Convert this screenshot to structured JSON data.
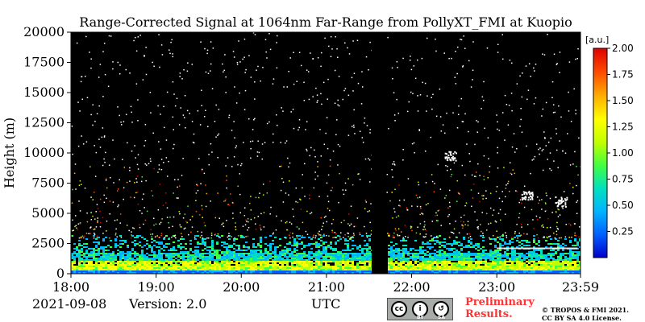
{
  "chart_data": {
    "type": "heatmap",
    "title": "Range-Corrected Signal at 1064nm Far-Range from PollyXT_FMI at Kuopio",
    "xlabel": "UTC",
    "ylabel": "Height (m)",
    "x_ticks": [
      "18:00",
      "19:00",
      "20:00",
      "21:00",
      "22:00",
      "23:00",
      "23:59"
    ],
    "x_tick_hours": [
      18,
      19,
      20,
      21,
      22,
      23,
      23.983
    ],
    "xlim_hours": [
      18,
      23.983
    ],
    "y_ticks": [
      0,
      2500,
      5000,
      7500,
      10000,
      12500,
      15000,
      17500,
      20000
    ],
    "ylim": [
      0,
      20000
    ],
    "grid": false,
    "colorbar": {
      "label": "[a.u.]",
      "ticks": [
        0.25,
        0.5,
        0.75,
        1.0,
        1.25,
        1.5,
        1.75,
        2.0
      ],
      "tick_labels": [
        "0.25",
        "0.50",
        "0.75",
        "1.00",
        "1.25",
        "1.50",
        "1.75",
        "2.00"
      ],
      "range": [
        0,
        2.0
      ],
      "colormap": [
        "#0000cc",
        "#0060ff",
        "#00b4ff",
        "#00e0c0",
        "#40ff40",
        "#c0ff00",
        "#ffff00",
        "#ffb000",
        "#ff5000",
        "#e00000"
      ]
    },
    "background_color": "#000000",
    "data_gap_hours": [
      21.53,
      21.7
    ],
    "features": [
      {
        "name": "near-ground aerosol layer",
        "height_range": [
          0,
          1500
        ],
        "typical_value": 1.0
      },
      {
        "name": "boundary-layer signal",
        "height_range": [
          1500,
          3000
        ],
        "typical_value": 0.6
      },
      {
        "name": "cloud",
        "time_hours": 23.75,
        "height": 6000,
        "typical_value": 2.0
      },
      {
        "name": "cloud",
        "time_hours": 23.35,
        "height": 6500,
        "typical_value": 2.0
      },
      {
        "name": "cloud",
        "time_hours": 22.45,
        "height": 9800,
        "typical_value": 2.0
      },
      {
        "name": "elevated layer",
        "time_range": [
          23.0,
          23.95
        ],
        "height": 2100,
        "typical_value": 2.0
      }
    ]
  },
  "footer": {
    "date": "2021-09-08",
    "version": "Version: 2.0",
    "utc_label": "UTC",
    "preliminary_line1": "Preliminary",
    "preliminary_line2": "Results.",
    "license_line1": "© TROPOS & FMI 2021.",
    "license_line2": "CC BY SA 4.0 License.",
    "cc_badge": {
      "by": "BY",
      "sa": "SA"
    }
  }
}
